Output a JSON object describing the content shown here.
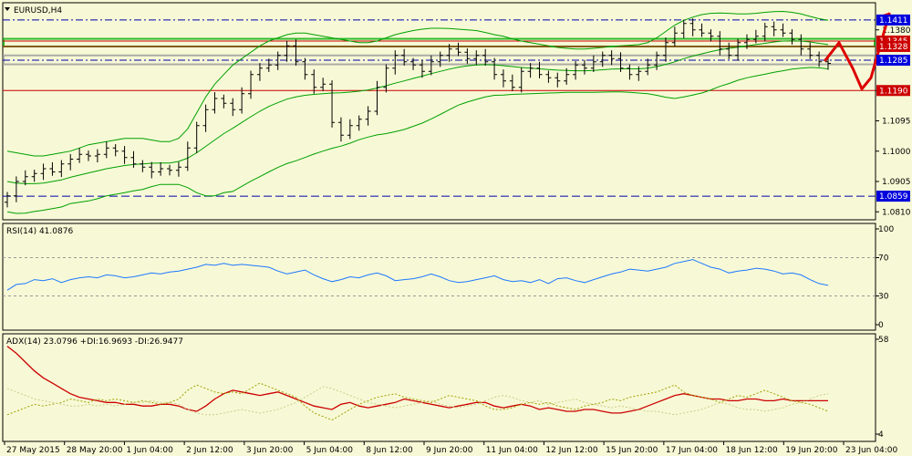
{
  "chart_data": [
    {
      "type": "candlestick",
      "title": "EURUSD,H4",
      "ylim": [
        1.0785,
        1.1465
      ],
      "yticks": [
        "1.0810",
        "1.0905",
        "1.1000",
        "1.1095",
        "1.1190",
        "1.1285",
        "1.1380"
      ],
      "price_tags": [
        {
          "value": 1.1411,
          "label": "1.1411",
          "bg": "#0000dd"
        },
        {
          "value": 1.1345,
          "label": "1.1345",
          "bg": "#cc0000"
        },
        {
          "value": 1.1328,
          "label": "1.1328",
          "bg": "#cc0000"
        },
        {
          "value": 1.1285,
          "label": "1.1285",
          "bg": "#0000dd"
        },
        {
          "value": 1.119,
          "label": "1.1190",
          "bg": "#cc0000"
        },
        {
          "value": 1.0859,
          "label": "1.0859",
          "bg": "#0000dd"
        }
      ],
      "horizontal_lines": [
        {
          "value": 1.1411,
          "color": "#0000aa",
          "style": "dashdot"
        },
        {
          "value": 1.1345,
          "color": "#cc0000",
          "style": "solid"
        },
        {
          "value": 1.1328,
          "color": "#cc0000",
          "style": "solid"
        },
        {
          "value": 1.1285,
          "color": "#0000aa",
          "style": "dashdot"
        },
        {
          "value": 1.119,
          "color": "#cc0000",
          "style": "solid"
        },
        {
          "value": 1.0859,
          "color": "#0000aa",
          "style": "dashed"
        }
      ],
      "zones": [
        {
          "from": 1.1328,
          "to": 1.1352,
          "color": "#00aa00"
        },
        {
          "from": 1.1272,
          "to": 1.13,
          "color": "#999999"
        }
      ],
      "close": [
        1.086,
        1.0905,
        1.092,
        1.093,
        1.0945,
        1.0935,
        1.096,
        1.0975,
        1.099,
        1.0985,
        1.099,
        1.101,
        1.1,
        1.098,
        1.096,
        1.095,
        1.0935,
        1.0945,
        1.094,
        1.095,
        1.101,
        1.108,
        1.113,
        1.1165,
        1.115,
        1.113,
        1.118,
        1.124,
        1.126,
        1.127,
        1.13,
        1.133,
        1.128,
        1.124,
        1.12,
        1.121,
        1.109,
        1.105,
        1.108,
        1.11,
        1.1125,
        1.12,
        1.126,
        1.13,
        1.128,
        1.127,
        1.125,
        1.128,
        1.13,
        1.132,
        1.131,
        1.129,
        1.13,
        1.128,
        1.124,
        1.122,
        1.12,
        1.125,
        1.126,
        1.124,
        1.123,
        1.122,
        1.124,
        1.127,
        1.126,
        1.128,
        1.13,
        1.129,
        1.126,
        1.124,
        1.125,
        1.127,
        1.13,
        1.134,
        1.137,
        1.14,
        1.138,
        1.137,
        1.136,
        1.132,
        1.13,
        1.134,
        1.135,
        1.136,
        1.139,
        1.138,
        1.137,
        1.135,
        1.132,
        1.13,
        1.128,
        1.1275
      ],
      "open": [
        1.084,
        1.086,
        1.0905,
        1.092,
        1.093,
        1.0945,
        1.0935,
        1.096,
        1.0975,
        1.099,
        1.0985,
        1.099,
        1.101,
        1.1,
        1.098,
        1.096,
        1.095,
        1.0935,
        1.0945,
        1.094,
        1.095,
        1.101,
        1.108,
        1.113,
        1.1165,
        1.115,
        1.113,
        1.118,
        1.124,
        1.126,
        1.127,
        1.13,
        1.133,
        1.128,
        1.124,
        1.12,
        1.121,
        1.109,
        1.105,
        1.108,
        1.11,
        1.1125,
        1.12,
        1.126,
        1.13,
        1.128,
        1.127,
        1.125,
        1.128,
        1.13,
        1.132,
        1.131,
        1.129,
        1.13,
        1.128,
        1.124,
        1.122,
        1.12,
        1.125,
        1.126,
        1.124,
        1.123,
        1.122,
        1.124,
        1.127,
        1.126,
        1.128,
        1.13,
        1.129,
        1.126,
        1.124,
        1.125,
        1.127,
        1.13,
        1.134,
        1.137,
        1.14,
        1.138,
        1.137,
        1.136,
        1.132,
        1.13,
        1.134,
        1.135,
        1.136,
        1.139,
        1.138,
        1.137,
        1.135,
        1.132,
        1.13,
        1.128
      ],
      "bb_upper": [
        1.1,
        1.0995,
        1.099,
        1.0985,
        1.0985,
        1.099,
        1.0995,
        1.1,
        1.101,
        1.102,
        1.1025,
        1.103,
        1.1035,
        1.104,
        1.104,
        1.104,
        1.1035,
        1.103,
        1.103,
        1.104,
        1.107,
        1.112,
        1.117,
        1.121,
        1.124,
        1.127,
        1.129,
        1.131,
        1.133,
        1.1345,
        1.1355,
        1.1365,
        1.137,
        1.137,
        1.1365,
        1.136,
        1.1355,
        1.135,
        1.1345,
        1.134,
        1.134,
        1.1345,
        1.1355,
        1.1365,
        1.1372,
        1.1378,
        1.1382,
        1.1385,
        1.1385,
        1.1384,
        1.1382,
        1.138,
        1.1378,
        1.1372,
        1.1365,
        1.136,
        1.1352,
        1.1345,
        1.134,
        1.1335,
        1.133,
        1.1325,
        1.1322,
        1.132,
        1.132,
        1.1322,
        1.1325,
        1.1328,
        1.133,
        1.1332,
        1.1334,
        1.134,
        1.1355,
        1.1375,
        1.1395,
        1.141,
        1.142,
        1.1428,
        1.1432,
        1.1433,
        1.1432,
        1.143,
        1.143,
        1.1432,
        1.1435,
        1.1437,
        1.1438,
        1.1435,
        1.143,
        1.1422,
        1.1415,
        1.141
      ],
      "bb_mid": [
        1.0905,
        1.09,
        1.0898,
        1.0898,
        1.09,
        1.0905,
        1.091,
        1.0918,
        1.0925,
        1.0932,
        1.0938,
        1.0945,
        1.095,
        1.0955,
        1.0958,
        1.096,
        1.0962,
        1.0963,
        1.0963,
        1.0968,
        1.0978,
        1.0995,
        1.1015,
        1.1035,
        1.1055,
        1.1072,
        1.109,
        1.1108,
        1.1125,
        1.114,
        1.1152,
        1.1163,
        1.117,
        1.1175,
        1.1178,
        1.118,
        1.1182,
        1.1183,
        1.1185,
        1.1188,
        1.1192,
        1.1198,
        1.1205,
        1.1213,
        1.122,
        1.1228,
        1.1235,
        1.1243,
        1.125,
        1.1257,
        1.1263,
        1.1267,
        1.127,
        1.1271,
        1.127,
        1.1268,
        1.1265,
        1.1262,
        1.126,
        1.1258,
        1.1256,
        1.1254,
        1.1253,
        1.1252,
        1.1252,
        1.1253,
        1.1255,
        1.1257,
        1.1258,
        1.1258,
        1.1258,
        1.126,
        1.1265,
        1.1272,
        1.128,
        1.129,
        1.1298,
        1.1305,
        1.1312,
        1.1318,
        1.1322,
        1.1326,
        1.133,
        1.1334,
        1.1338,
        1.1342,
        1.1345,
        1.1346,
        1.1345,
        1.1342,
        1.1338,
        1.1334
      ],
      "bb_lower": [
        1.081,
        1.0805,
        1.0806,
        1.0811,
        1.0815,
        1.082,
        1.0825,
        1.0836,
        1.084,
        1.0844,
        1.0851,
        1.086,
        1.0865,
        1.087,
        1.0876,
        1.088,
        1.0889,
        1.0896,
        1.0896,
        1.0896,
        1.0886,
        1.087,
        1.086,
        1.086,
        1.087,
        1.0874,
        1.089,
        1.0906,
        1.092,
        1.0935,
        1.0949,
        1.0961,
        1.097,
        1.098,
        1.0991,
        1.1,
        1.1009,
        1.1016,
        1.1025,
        1.1036,
        1.1044,
        1.1051,
        1.1055,
        1.1061,
        1.1068,
        1.1078,
        1.1088,
        1.1101,
        1.1115,
        1.113,
        1.1144,
        1.1154,
        1.1162,
        1.117,
        1.1175,
        1.1176,
        1.1178,
        1.1179,
        1.118,
        1.1181,
        1.1182,
        1.1183,
        1.1184,
        1.1184,
        1.1184,
        1.1184,
        1.1185,
        1.1186,
        1.1186,
        1.1184,
        1.1182,
        1.118,
        1.1175,
        1.1169,
        1.1165,
        1.117,
        1.1176,
        1.1182,
        1.1192,
        1.1203,
        1.1212,
        1.1222,
        1.123,
        1.1236,
        1.1241,
        1.1247,
        1.1252,
        1.1257,
        1.126,
        1.1262,
        1.1261,
        1.1258
      ]
    },
    {
      "type": "line",
      "title": "RSI(14) 41.0876",
      "ylim": [
        0,
        100
      ],
      "yticks": [
        "100",
        "70",
        "30",
        "0"
      ],
      "levels": [
        70,
        30
      ],
      "series": [
        {
          "color": "#1e78ff",
          "values": [
            36,
            42,
            43,
            47,
            46,
            48,
            44,
            47,
            49,
            50,
            49,
            52,
            51,
            49,
            50,
            52,
            54,
            53,
            55,
            56,
            58,
            60,
            63,
            62,
            64,
            62,
            63,
            62,
            61,
            60,
            56,
            53,
            55,
            57,
            52,
            48,
            45,
            47,
            50,
            49,
            52,
            54,
            51,
            46,
            47,
            48,
            50,
            53,
            50,
            46,
            44,
            45,
            47,
            49,
            51,
            47,
            45,
            46,
            44,
            47,
            43,
            48,
            49,
            46,
            44,
            47,
            50,
            53,
            55,
            58,
            57,
            56,
            58,
            60,
            64,
            66,
            68,
            64,
            60,
            58,
            54,
            56,
            57,
            59,
            58,
            56,
            53,
            54,
            52,
            47,
            43,
            41
          ]
        }
      ]
    },
    {
      "type": "line",
      "title": "ADX(14) 23.0796 +DI:16.9693 -DI:26.9477",
      "ylim": [
        4,
        58
      ],
      "yticks": [
        "58",
        "4"
      ],
      "series": [
        {
          "color": "#cc0000",
          "values": [
            54,
            50,
            45,
            40,
            36,
            33,
            30,
            27,
            25,
            24,
            23,
            22,
            22,
            21,
            21,
            20,
            20,
            21,
            21,
            20,
            18,
            17,
            20,
            24,
            27,
            29,
            28,
            27,
            26,
            27,
            28,
            26,
            24,
            22,
            20,
            19,
            18,
            21,
            22,
            20,
            19,
            20,
            21,
            22,
            24,
            23,
            22,
            21,
            20,
            19,
            20,
            21,
            22,
            22,
            20,
            19,
            20,
            21,
            20,
            18,
            19,
            18,
            17,
            17,
            18,
            18,
            17,
            16,
            16,
            17,
            18,
            20,
            22,
            24,
            26,
            27,
            26,
            25,
            24,
            24,
            23,
            23,
            24,
            24,
            23,
            23,
            24,
            23,
            23,
            23,
            23,
            23
          ]
        },
        {
          "color": "#a0a000",
          "values": [
            15,
            17,
            19,
            21,
            20,
            21,
            22,
            24,
            23,
            22,
            24,
            23,
            24,
            23,
            22,
            23,
            22,
            21,
            22,
            24,
            29,
            32,
            30,
            28,
            27,
            28,
            27,
            30,
            33,
            31,
            29,
            27,
            25,
            20,
            16,
            14,
            12,
            15,
            18,
            21,
            23,
            25,
            26,
            27,
            25,
            24,
            23,
            22,
            24,
            26,
            25,
            24,
            23,
            20,
            18,
            18,
            19,
            21,
            22,
            21,
            22,
            20,
            19,
            18,
            20,
            21,
            22,
            24,
            23,
            25,
            26,
            27,
            28,
            30,
            32,
            28,
            26,
            25,
            24,
            22,
            24,
            26,
            25,
            27,
            29,
            27,
            25,
            23,
            22,
            21,
            19,
            17
          ]
        },
        {
          "color": "#cccc88",
          "values": [
            30,
            28,
            26,
            24,
            23,
            22,
            21,
            20,
            20,
            21,
            20,
            21,
            20,
            21,
            22,
            22,
            23,
            22,
            22,
            21,
            18,
            16,
            15,
            15,
            16,
            17,
            18,
            17,
            16,
            17,
            18,
            20,
            22,
            25,
            28,
            31,
            30,
            28,
            26,
            24,
            22,
            21,
            20,
            19,
            20,
            21,
            22,
            23,
            21,
            20,
            19,
            20,
            21,
            23,
            25,
            26,
            25,
            23,
            22,
            23,
            21,
            22,
            23,
            24,
            22,
            21,
            20,
            19,
            20,
            19,
            18,
            17,
            17,
            16,
            15,
            16,
            17,
            18,
            20,
            22,
            21,
            19,
            18,
            18,
            17,
            18,
            19,
            21,
            22,
            24,
            26,
            27
          ]
        }
      ]
    }
  ],
  "x_labels": [
    "27 May 2015",
    "28 May 20:00",
    "1 Jun 04:00",
    "2 Jun 12:00",
    "3 Jun 20:00",
    "5 Jun 04:00",
    "8 Jun 12:00",
    "9 Jun 20:00",
    "11 Jun 04:00",
    "12 Jun 12:00",
    "15 Jun 20:00",
    "17 Jun 04:00",
    "18 Jun 12:00",
    "19 Jun 20:00",
    "23 Jun 04:00"
  ],
  "colors": {
    "background": "#f7f9d6",
    "candle": "#000000",
    "bollinger": "#00a000",
    "forecast": "#dd0000"
  }
}
